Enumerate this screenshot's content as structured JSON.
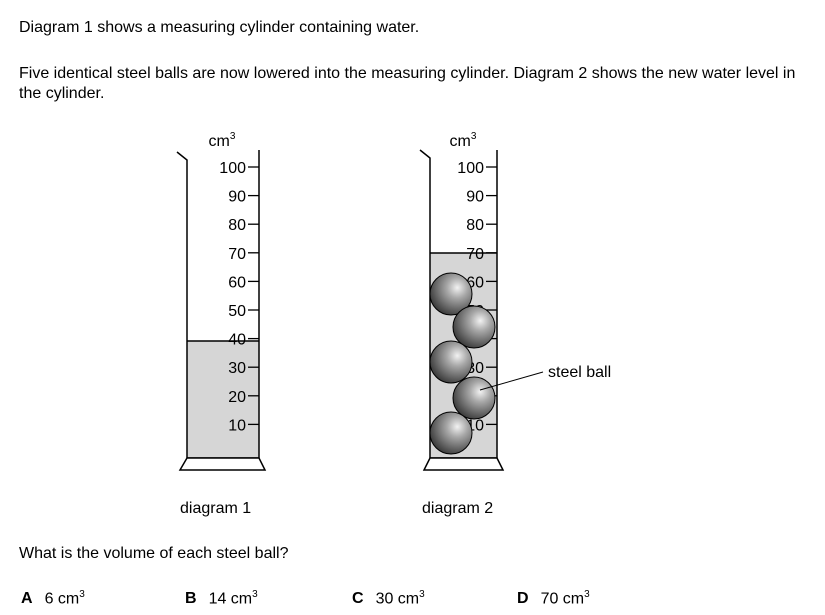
{
  "intro": "Diagram 1 shows a measuring cylinder containing water.",
  "description": "Five identical steel balls are now lowered into the measuring cylinder. Diagram 2 shows the new water level in the cylinder.",
  "unit_base": "cm",
  "unit_sup": "3",
  "scale_labels": [
    "100",
    "90",
    "80",
    "70",
    "60",
    "50",
    "40",
    "30",
    "20",
    "10"
  ],
  "diagram1": {
    "caption": "diagram 1",
    "water_level": 40
  },
  "diagram2": {
    "caption": "diagram 2",
    "water_level": 70,
    "ball_count": 5,
    "label": "steel ball"
  },
  "question": "What is the volume of each steel ball?",
  "options": [
    {
      "letter": "A",
      "value": "6 cm",
      "sup": "3"
    },
    {
      "letter": "B",
      "value": "14 cm",
      "sup": "3"
    },
    {
      "letter": "C",
      "value": "30 cm",
      "sup": "3"
    },
    {
      "letter": "D",
      "value": "70 cm",
      "sup": "3"
    }
  ]
}
